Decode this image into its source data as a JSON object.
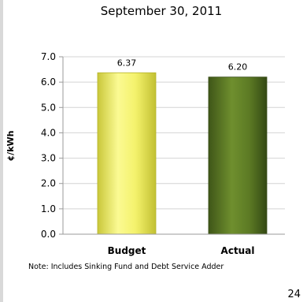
{
  "chart_data": {
    "type": "bar",
    "title": "September 30, 2011",
    "ylabel": "¢/kWh",
    "xlabel": "",
    "categories": [
      "Budget",
      "Actual"
    ],
    "values": [
      6.37,
      6.2
    ],
    "value_labels": [
      "6.37",
      "6.20"
    ],
    "ylim": [
      0,
      7
    ],
    "yticks": [
      0,
      1,
      2,
      3,
      4,
      5,
      6,
      7
    ],
    "ytick_labels": [
      "0.0",
      "1.0",
      "2.0",
      "3.0",
      "4.0",
      "5.0",
      "6.0",
      "7.0"
    ],
    "grid": true,
    "legend": "none",
    "bar_colors": [
      "#f2f06a",
      "#5e7d25"
    ],
    "note": "Note: Includes Sinking Fund and Debt Service Adder"
  },
  "page_number": "24"
}
